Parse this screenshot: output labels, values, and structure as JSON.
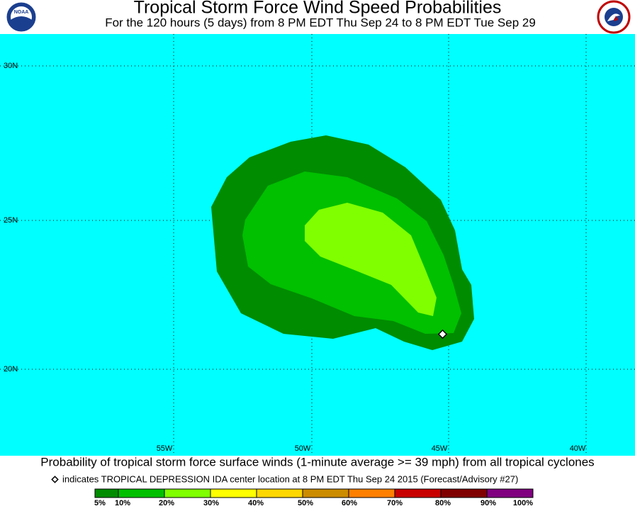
{
  "header": {
    "title": "Tropical Storm Force Wind Speed Probabilities",
    "subtitle": "For the 120 hours (5 days) from 8 PM EDT Thu Sep 24 to 8 PM EDT Tue Sep 29",
    "logo_left": "NOAA"
  },
  "map": {
    "latitude_labels": [
      "30N",
      "25N",
      "20N"
    ],
    "longitude_labels": [
      "55W",
      "50W",
      "45W",
      "40W"
    ]
  },
  "caption": "Probability of tropical storm force surface winds (1-minute average >= 39 mph) from all tropical cyclones",
  "marker_note": "indicates TROPICAL DEPRESSION IDA center location at 8 PM EDT Thu Sep 24 2015 (Forecast/Advisory #27)",
  "legend": {
    "labels": [
      "5%",
      "10%",
      "20%",
      "30%",
      "40%",
      "50%",
      "60%",
      "70%",
      "80%",
      "90%",
      "100%"
    ],
    "colors": [
      "#008c00",
      "#00c000",
      "#80ff00",
      "#ffff00",
      "#ffd700",
      "#cc8c00",
      "#ff8000",
      "#c80000",
      "#800000",
      "#800080"
    ]
  }
}
